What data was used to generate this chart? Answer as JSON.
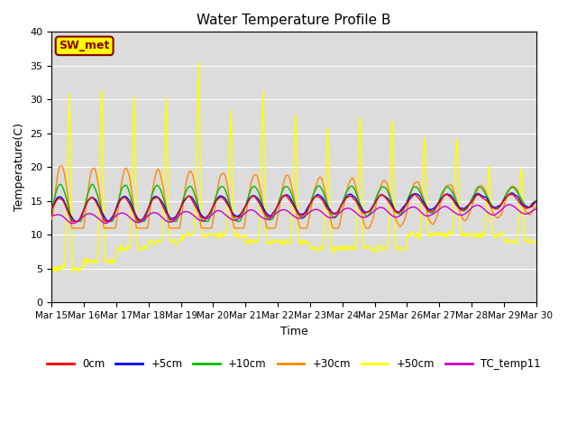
{
  "title": "Water Temperature Profile B",
  "xlabel": "Time",
  "ylabel": "Temperature(C)",
  "ylim": [
    0,
    40
  ],
  "yticks": [
    0,
    5,
    10,
    15,
    20,
    25,
    30,
    35,
    40
  ],
  "x_tick_labels": [
    "Mar 15",
    "Mar 16",
    "Mar 17",
    "Mar 18",
    "Mar 19",
    "Mar 20",
    "Mar 21",
    "Mar 22",
    "Mar 23",
    "Mar 24",
    "Mar 25",
    "Mar 26",
    "Mar 27",
    "Mar 28",
    "Mar 29",
    "Mar 30"
  ],
  "annotation_text": "SW_met",
  "annotation_box_color": "#FFFF00",
  "annotation_text_color": "#8B0000",
  "bg_color": "#DCDCDC",
  "series_colors": {
    "0cm": "#FF0000",
    "+5cm": "#0000FF",
    "+10cm": "#00BB00",
    "+30cm": "#FF8800",
    "+50cm": "#FFFF00",
    "TC_temp11": "#CC00CC"
  },
  "legend_labels": [
    "0cm",
    "+5cm",
    "+10cm",
    "+30cm",
    "+50cm",
    "TC_temp11"
  ],
  "figsize": [
    6.4,
    4.8
  ],
  "dpi": 100
}
